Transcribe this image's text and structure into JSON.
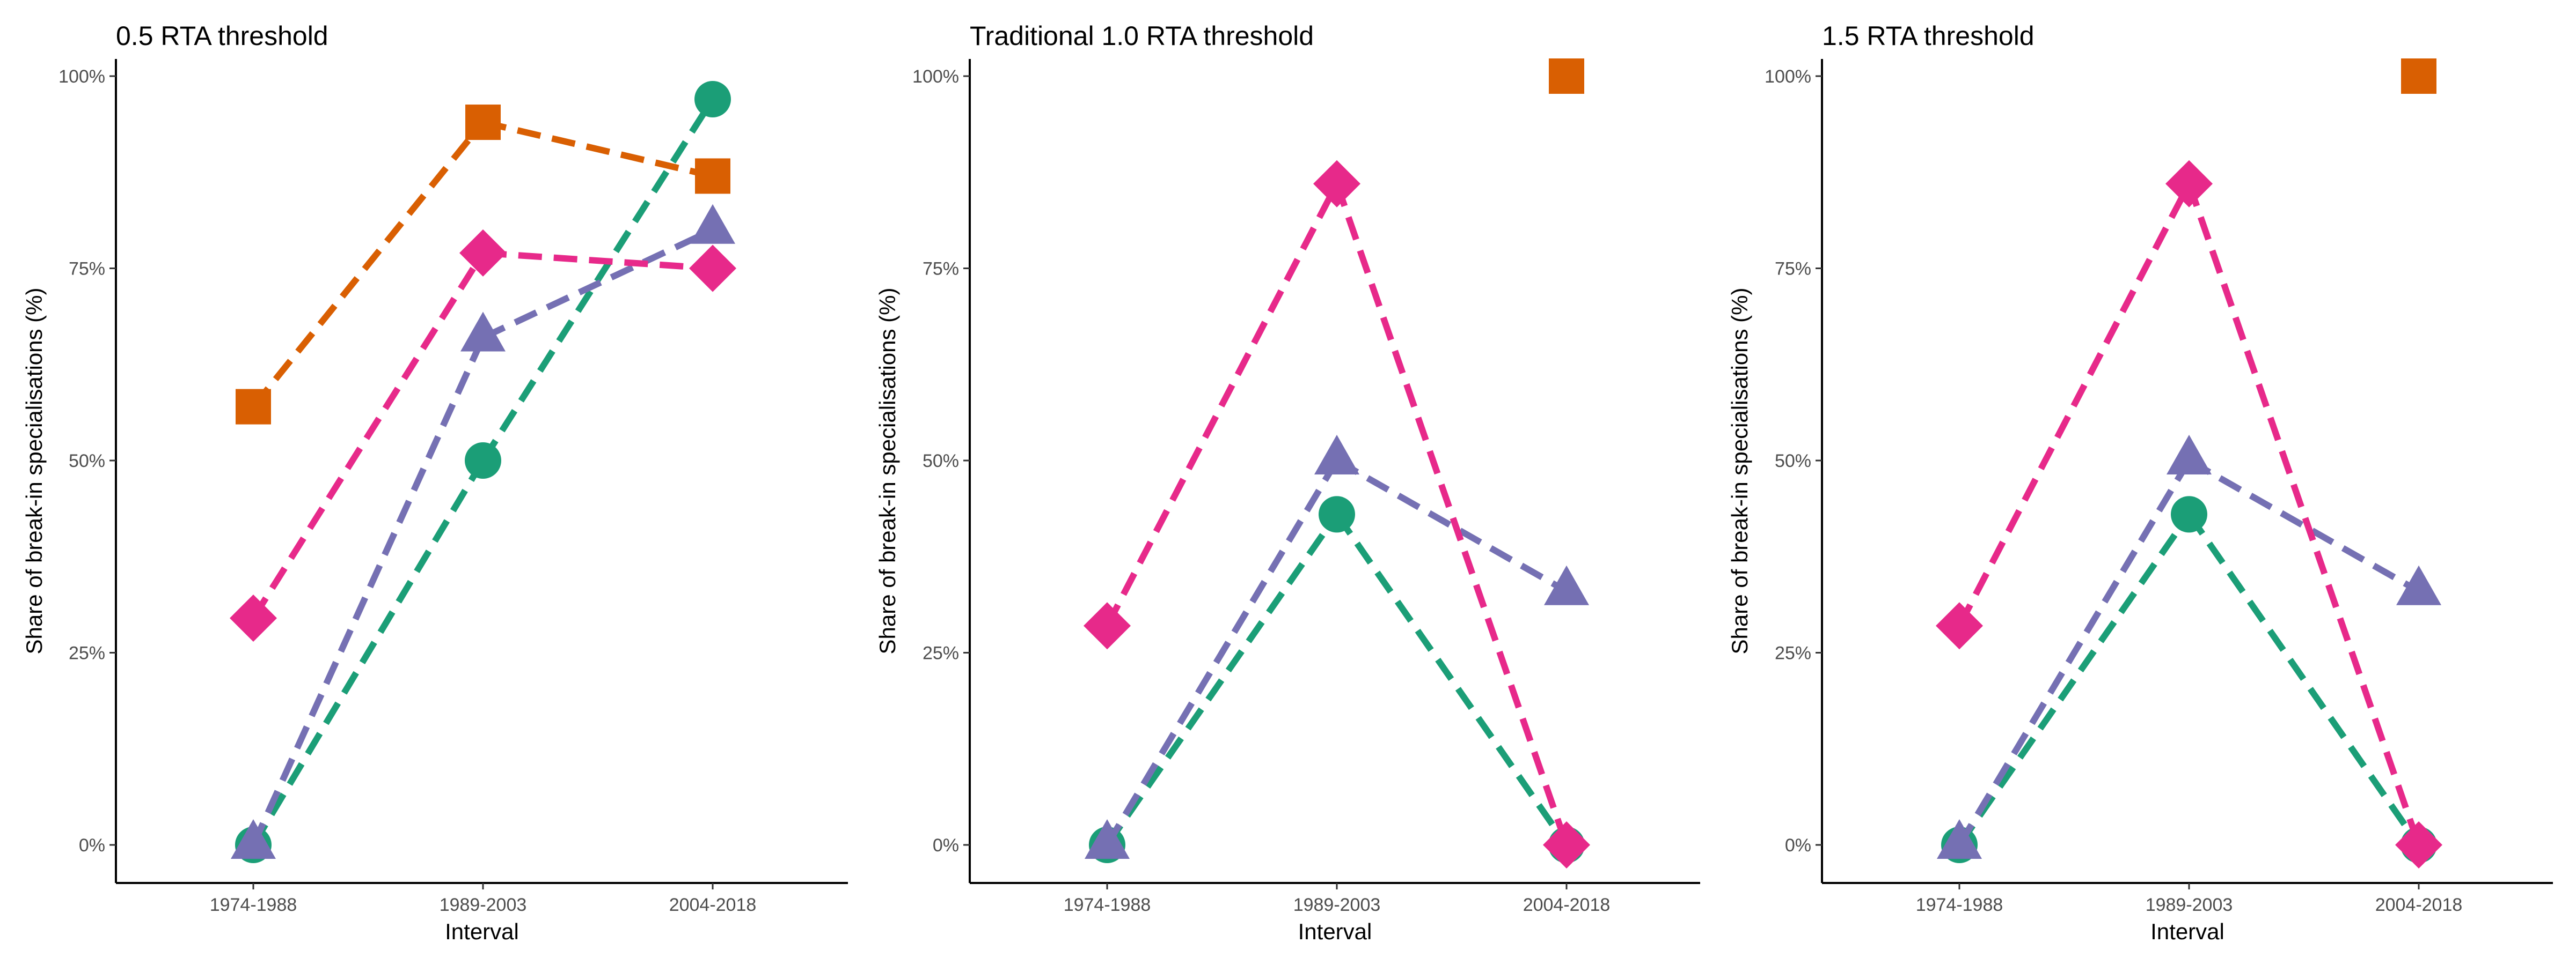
{
  "colors": {
    "teal": "#1b9e77",
    "orange": "#d95f02",
    "purple": "#7570b3",
    "pink": "#e7298a"
  },
  "chart_data": [
    {
      "type": "line",
      "title": "0.5 RTA threshold",
      "xlabel": "Interval",
      "ylabel": "Share of break-in specialisations (%)",
      "categories": [
        "1974-1988",
        "1989-2003",
        "2004-2018"
      ],
      "yticks": [
        "0%",
        "25%",
        "50%",
        "75%",
        "100%"
      ],
      "ylim": [
        0,
        100
      ],
      "grid": false,
      "series": [
        {
          "marker": "square",
          "color": "#d95f02",
          "values": [
            57,
            94,
            87
          ]
        },
        {
          "marker": "circle",
          "color": "#1b9e77",
          "values": [
            0,
            50,
            97
          ]
        },
        {
          "marker": "triangle",
          "color": "#7570b3",
          "values": [
            0,
            66,
            80
          ]
        },
        {
          "marker": "diamond",
          "color": "#e7298a",
          "values": [
            29.5,
            77,
            75
          ]
        }
      ]
    },
    {
      "type": "line",
      "title": "Traditional 1.0 RTA threshold",
      "xlabel": "Interval",
      "ylabel": "Share of break-in specialisations (%)",
      "categories": [
        "1974-1988",
        "1989-2003",
        "2004-2018"
      ],
      "yticks": [
        "0%",
        "25%",
        "50%",
        "75%",
        "100%"
      ],
      "ylim": [
        0,
        100
      ],
      "grid": false,
      "series": [
        {
          "marker": "square",
          "color": "#d95f02",
          "values": [
            null,
            null,
            100
          ]
        },
        {
          "marker": "circle",
          "color": "#1b9e77",
          "values": [
            0,
            43,
            0
          ]
        },
        {
          "marker": "triangle",
          "color": "#7570b3",
          "values": [
            0,
            50,
            33
          ]
        },
        {
          "marker": "diamond",
          "color": "#e7298a",
          "values": [
            28.5,
            86,
            0
          ]
        }
      ]
    },
    {
      "type": "line",
      "title": "1.5 RTA threshold",
      "xlabel": "Interval",
      "ylabel": "Share of break-in specialisations (%)",
      "categories": [
        "1974-1988",
        "1989-2003",
        "2004-2018"
      ],
      "yticks": [
        "0%",
        "25%",
        "50%",
        "75%",
        "100%"
      ],
      "ylim": [
        0,
        100
      ],
      "grid": false,
      "series": [
        {
          "marker": "square",
          "color": "#d95f02",
          "values": [
            null,
            null,
            100
          ]
        },
        {
          "marker": "circle",
          "color": "#1b9e77",
          "values": [
            0,
            43,
            0
          ]
        },
        {
          "marker": "triangle",
          "color": "#7570b3",
          "values": [
            0,
            50,
            33
          ]
        },
        {
          "marker": "diamond",
          "color": "#e7298a",
          "values": [
            28.5,
            86,
            0
          ]
        }
      ]
    }
  ]
}
